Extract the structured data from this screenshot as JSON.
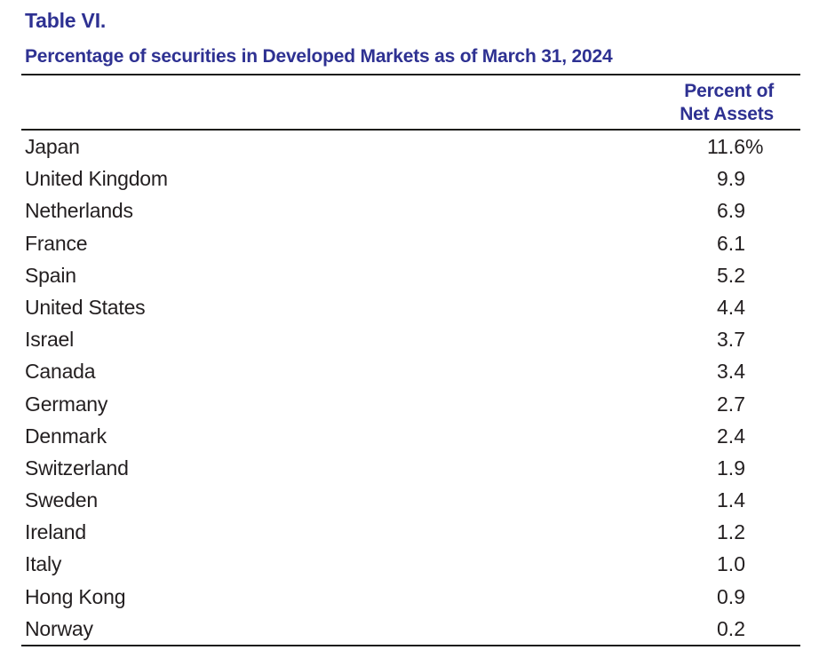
{
  "table": {
    "label": "Table VI.",
    "title": "Percentage of securities in Developed Markets as of March 31, 2024",
    "value_column_header_line1": "Percent of",
    "value_column_header_line2": "Net Assets",
    "rows": [
      {
        "country": "Japan",
        "value": "11.6",
        "suffix": "%"
      },
      {
        "country": "United Kingdom",
        "value": "9.9",
        "suffix": ""
      },
      {
        "country": "Netherlands",
        "value": "6.9",
        "suffix": ""
      },
      {
        "country": "France",
        "value": "6.1",
        "suffix": ""
      },
      {
        "country": "Spain",
        "value": "5.2",
        "suffix": ""
      },
      {
        "country": "United States",
        "value": "4.4",
        "suffix": ""
      },
      {
        "country": "Israel",
        "value": "3.7",
        "suffix": ""
      },
      {
        "country": "Canada",
        "value": "3.4",
        "suffix": ""
      },
      {
        "country": "Germany",
        "value": "2.7",
        "suffix": ""
      },
      {
        "country": "Denmark",
        "value": "2.4",
        "suffix": ""
      },
      {
        "country": "Switzerland",
        "value": "1.9",
        "suffix": ""
      },
      {
        "country": "Sweden",
        "value": "1.4",
        "suffix": ""
      },
      {
        "country": "Ireland",
        "value": "1.2",
        "suffix": ""
      },
      {
        "country": "Italy",
        "value": "1.0",
        "suffix": ""
      },
      {
        "country": "Hong Kong",
        "value": "0.9",
        "suffix": ""
      },
      {
        "country": "Norway",
        "value": "0.2",
        "suffix": ""
      }
    ]
  },
  "colors": {
    "heading_blue": "#2e3192",
    "body_text": "#231f20",
    "rule_black": "#1d1d1b",
    "background": "#ffffff"
  }
}
